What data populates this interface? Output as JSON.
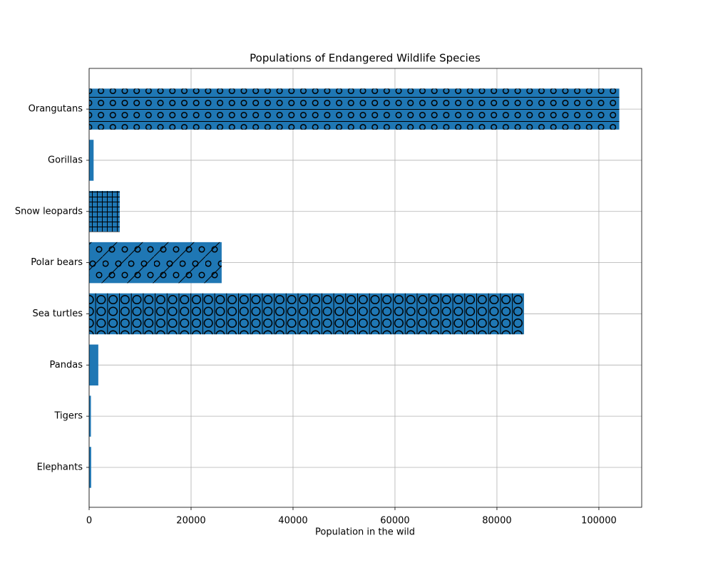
{
  "chart_data": {
    "type": "barh",
    "title": "Populations of Endangered Wildlife Species",
    "xlabel": "Population in the wild",
    "categories": [
      "Elephants",
      "Tigers",
      "Pandas",
      "Sea turtles",
      "Polar bears",
      "Snow leopards",
      "Gorillas",
      "Orangutans"
    ],
    "values": [
      400,
      350,
      1800,
      85300,
      26000,
      6000,
      880,
      104000
    ],
    "color": "#1f77b4",
    "xlim": [
      0,
      108400
    ],
    "xticks": [
      0,
      20000,
      40000,
      60000,
      80000,
      100000
    ],
    "grid": true
  }
}
